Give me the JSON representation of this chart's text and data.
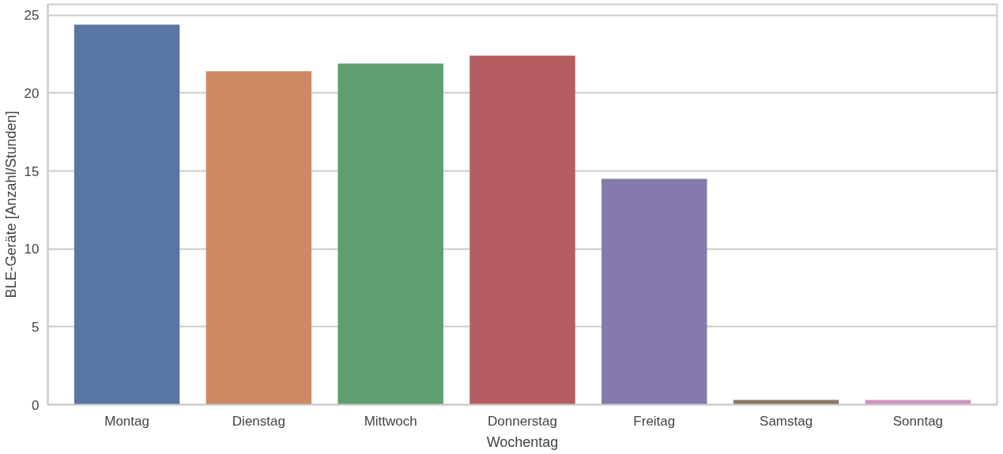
{
  "chart_data": {
    "type": "bar",
    "xlabel": "Wochentag",
    "ylabel": "BLE-Geräte [Anzahl/Stunden]",
    "categories": [
      "Montag",
      "Dienstag",
      "Mittwoch",
      "Donnerstag",
      "Freitag",
      "Samstag",
      "Sonntag"
    ],
    "values": [
      24.4,
      21.4,
      21.9,
      22.4,
      14.5,
      0.3,
      0.3
    ],
    "colors": [
      "#5975a4",
      "#cc8963",
      "#5f9e6e",
      "#b55d60",
      "#857aab",
      "#8d7866",
      "#d095bf"
    ],
    "ylim": [
      0,
      25.7
    ],
    "yticks": [
      0,
      5,
      10,
      15,
      20,
      25
    ],
    "grid": "y"
  }
}
